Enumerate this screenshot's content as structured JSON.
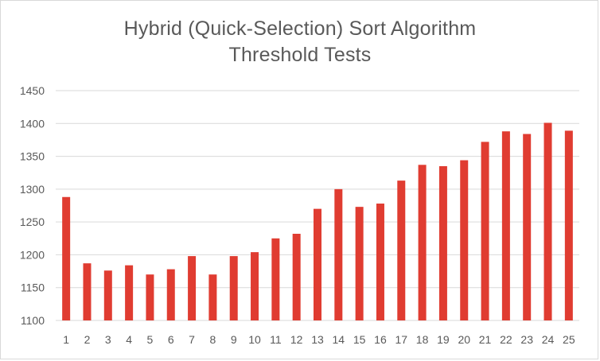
{
  "chart_data": {
    "type": "bar",
    "title": "Hybrid (Quick-Selection) Sort Algorithm",
    "subtitle": "Threshold Tests",
    "xlabel": "",
    "ylabel": "",
    "categories": [
      "1",
      "2",
      "3",
      "4",
      "5",
      "6",
      "7",
      "8",
      "9",
      "10",
      "11",
      "12",
      "13",
      "14",
      "15",
      "16",
      "17",
      "18",
      "19",
      "20",
      "21",
      "22",
      "23",
      "24",
      "25"
    ],
    "values": [
      1288,
      1187,
      1176,
      1184,
      1170,
      1178,
      1198,
      1170,
      1198,
      1204,
      1225,
      1232,
      1270,
      1300,
      1273,
      1278,
      1313,
      1337,
      1335,
      1344,
      1372,
      1388,
      1384,
      1401,
      1389
    ],
    "ylim": [
      1100,
      1450
    ],
    "yticks": [
      1100,
      1150,
      1200,
      1250,
      1300,
      1350,
      1400,
      1450
    ],
    "grid": true,
    "legend": "none",
    "colors": {
      "bar": "#e03c31",
      "grid": "#d9d9d9",
      "text": "#595959"
    }
  }
}
